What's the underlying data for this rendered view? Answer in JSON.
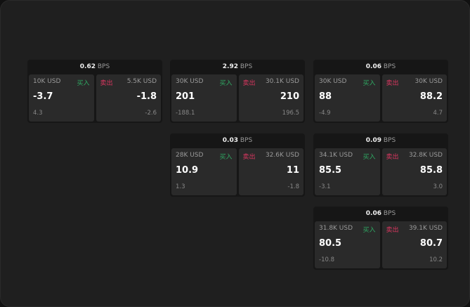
{
  "labels": {
    "unit": "BPS",
    "buy": "买入",
    "sell": "卖出"
  },
  "colors": {
    "buy": "#2fa862",
    "sell": "#d8365f"
  },
  "cards": [
    {
      "bps": "0.62",
      "buy": {
        "size": "10K USD",
        "price": "-3.7",
        "change": "4.3"
      },
      "sell": {
        "size": "5.5K USD",
        "price": "-1.8",
        "change": "-2.6"
      }
    },
    {
      "bps": "2.92",
      "buy": {
        "size": "30K USD",
        "price": "201",
        "change": "-188.1"
      },
      "sell": {
        "size": "30.1K USD",
        "price": "210",
        "change": "196.5"
      }
    },
    {
      "bps": "0.06",
      "buy": {
        "size": "30K USD",
        "price": "88",
        "change": "-4.9"
      },
      "sell": {
        "size": "30K USD",
        "price": "88.2",
        "change": "4.7"
      }
    },
    {
      "bps": "0.03",
      "buy": {
        "size": "28K USD",
        "price": "10.9",
        "change": "1.3"
      },
      "sell": {
        "size": "32.6K USD",
        "price": "11",
        "change": "-1.8"
      }
    },
    {
      "bps": "0.09",
      "buy": {
        "size": "34.1K USD",
        "price": "85.5",
        "change": "-3.1"
      },
      "sell": {
        "size": "32.8K USD",
        "price": "85.8",
        "change": "3.0"
      }
    },
    {
      "bps": "0.06",
      "buy": {
        "size": "31.8K USD",
        "price": "80.5",
        "change": "-10.8"
      },
      "sell": {
        "size": "39.1K USD",
        "price": "80.7",
        "change": "10.2"
      }
    }
  ]
}
